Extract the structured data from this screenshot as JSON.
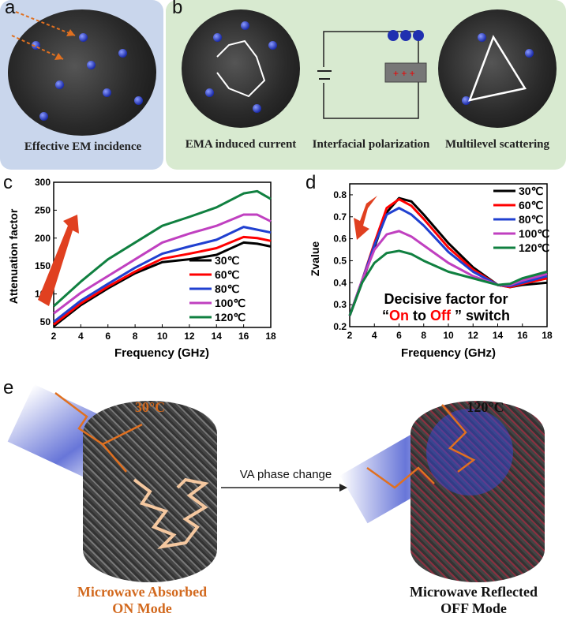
{
  "panels": {
    "a": {
      "label": "a",
      "caption": "Effective EM incidence"
    },
    "b": {
      "label": "b",
      "captions": [
        "EMA induced current",
        "Interfacial polarization",
        "Multilevel scattering"
      ]
    },
    "c": {
      "label": "c"
    },
    "d": {
      "label": "d",
      "annotation_line1": "Decisive factor for",
      "annotation_open": "“",
      "annotation_on": "On",
      "annotation_to": " to ",
      "annotation_off": "Off",
      "annotation_close": " ” switch"
    },
    "e": {
      "label": "e",
      "left_temp": "30°C",
      "right_temp": "120°C",
      "arrow_label": "VA phase change",
      "left_caption_1": "Microwave Absorbed",
      "left_caption_2": "ON Mode",
      "right_caption_1": "Microwave Reflected",
      "right_caption_2": "OFF Mode"
    }
  },
  "colors": {
    "s30": "#000000",
    "s60": "#ff0000",
    "s80": "#2040d0",
    "s100": "#c040c0",
    "s120": "#108040",
    "accent_orange": "#d2691e",
    "arrow_red": "#e04020"
  },
  "chart_data": [
    {
      "type": "line",
      "xlabel": "Frequency (GHz)",
      "ylabel": "Attenuation factor",
      "xlim": [
        2,
        18
      ],
      "ylim": [
        40,
        300
      ],
      "xticks": [
        2,
        4,
        6,
        8,
        10,
        12,
        14,
        16,
        18
      ],
      "yticks": [
        50,
        100,
        150,
        200,
        250,
        300
      ],
      "legend_placement": "bottom-right",
      "x": [
        2,
        4,
        6,
        8,
        10,
        12,
        14,
        16,
        17,
        18
      ],
      "series": [
        {
          "name": "30℃",
          "color": "#000000",
          "values": [
            42,
            80,
            110,
            137,
            157,
            162,
            170,
            192,
            190,
            185
          ]
        },
        {
          "name": "60℃",
          "color": "#ff0000",
          "values": [
            45,
            83,
            113,
            140,
            163,
            172,
            182,
            202,
            200,
            195
          ]
        },
        {
          "name": "80℃",
          "color": "#2040d0",
          "values": [
            50,
            88,
            118,
            147,
            172,
            185,
            197,
            220,
            215,
            210
          ]
        },
        {
          "name": "100℃",
          "color": "#c040c0",
          "values": [
            65,
            102,
            132,
            162,
            192,
            208,
            222,
            242,
            242,
            230
          ]
        },
        {
          "name": "120℃",
          "color": "#108040",
          "values": [
            78,
            122,
            162,
            192,
            222,
            238,
            255,
            280,
            284,
            270
          ]
        }
      ]
    },
    {
      "type": "line",
      "xlabel": "Frequency (GHz)",
      "ylabel": "Zvalue",
      "xlim": [
        2,
        18
      ],
      "ylim": [
        0.2,
        0.85
      ],
      "xticks": [
        2,
        4,
        6,
        8,
        10,
        12,
        14,
        16,
        18
      ],
      "yticks": [
        0.2,
        0.3,
        0.4,
        0.5,
        0.6,
        0.7,
        0.8
      ],
      "legend_placement": "top-right",
      "x": [
        2,
        3,
        4,
        5,
        6,
        7,
        8,
        10,
        12,
        14,
        15,
        16,
        18
      ],
      "series": [
        {
          "name": "30℃",
          "color": "#000000",
          "values": [
            0.25,
            0.4,
            0.56,
            0.72,
            0.785,
            0.77,
            0.71,
            0.58,
            0.47,
            0.39,
            0.38,
            0.39,
            0.4
          ]
        },
        {
          "name": "60℃",
          "color": "#ff0000",
          "values": [
            0.25,
            0.41,
            0.58,
            0.74,
            0.78,
            0.75,
            0.69,
            0.56,
            0.46,
            0.39,
            0.38,
            0.395,
            0.42
          ]
        },
        {
          "name": "80℃",
          "color": "#2040d0",
          "values": [
            0.25,
            0.41,
            0.57,
            0.71,
            0.74,
            0.71,
            0.66,
            0.54,
            0.45,
            0.39,
            0.385,
            0.4,
            0.43
          ]
        },
        {
          "name": "100℃",
          "color": "#c040c0",
          "values": [
            0.25,
            0.41,
            0.55,
            0.62,
            0.635,
            0.61,
            0.57,
            0.49,
            0.43,
            0.39,
            0.39,
            0.41,
            0.44
          ]
        },
        {
          "name": "120℃",
          "color": "#108040",
          "values": [
            0.25,
            0.4,
            0.49,
            0.535,
            0.545,
            0.53,
            0.5,
            0.45,
            0.42,
            0.39,
            0.395,
            0.42,
            0.45
          ]
        }
      ]
    }
  ]
}
